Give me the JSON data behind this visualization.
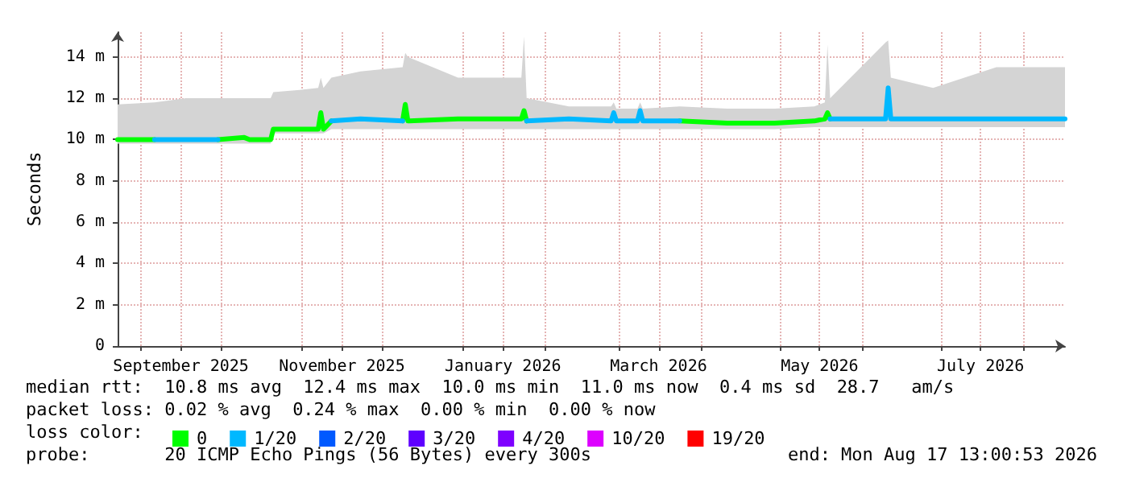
{
  "chart_data": {
    "type": "line",
    "ylabel": "Seconds",
    "legend_title": "loss color:",
    "legend": "bottom",
    "grid": true,
    "marker": "none",
    "line_style": "solid",
    "x": [
      "2025-08-23",
      "2025-09-06",
      "2025-09-18",
      "2025-09-30",
      "2025-10-10",
      "2025-10-12",
      "2025-10-20",
      "2025-10-21",
      "2025-10-31",
      "2025-11-07",
      "2025-11-08",
      "2025-11-09",
      "2025-11-12",
      "2025-11-23",
      "2025-12-09",
      "2025-12-10",
      "2025-12-11",
      "2025-12-30",
      "2026-01-23",
      "2026-01-24",
      "2026-01-25",
      "2026-02-10",
      "2026-02-26",
      "2026-02-27",
      "2026-02-28",
      "2026-03-08",
      "2026-03-09",
      "2026-03-10",
      "2026-03-24",
      "2026-04-11",
      "2026-04-29",
      "2026-05-14",
      "2026-05-18",
      "2026-05-19",
      "2026-05-20",
      "2026-06-10",
      "2026-06-11",
      "2026-06-12",
      "2026-06-28",
      "2026-07-22",
      "2026-08-17"
    ],
    "xlim": [
      "2025-08-23",
      "2026-08-17"
    ],
    "xticks": [
      {
        "value": "2025-09-01",
        "label": null
      },
      {
        "value": "2025-09-16",
        "label": "September 2025"
      },
      {
        "value": "2025-10-01",
        "label": null
      },
      {
        "value": "2025-11-01",
        "label": null
      },
      {
        "value": "2025-11-16",
        "label": "November 2025"
      },
      {
        "value": "2025-12-01",
        "label": null
      },
      {
        "value": "2026-01-01",
        "label": null
      },
      {
        "value": "2026-01-16",
        "label": "January 2026"
      },
      {
        "value": "2026-02-01",
        "label": null
      },
      {
        "value": "2026-03-01",
        "label": null
      },
      {
        "value": "2026-03-16",
        "label": "March 2026"
      },
      {
        "value": "2026-04-01",
        "label": null
      },
      {
        "value": "2026-05-01",
        "label": null
      },
      {
        "value": "2026-05-16",
        "label": "May 2026"
      },
      {
        "value": "2026-06-01",
        "label": null
      },
      {
        "value": "2026-07-01",
        "label": null
      },
      {
        "value": "2026-07-16",
        "label": "July 2026"
      },
      {
        "value": "2026-08-01",
        "label": null
      }
    ],
    "ylim": [
      0,
      15.2
    ],
    "yticks": [
      0,
      {
        "value": 2,
        "label": "2 m"
      },
      {
        "value": 4,
        "label": "4 m"
      },
      {
        "value": 6,
        "label": "6 m"
      },
      {
        "value": 8,
        "label": "8 m"
      },
      {
        "value": 10,
        "label": "10 m"
      },
      {
        "value": 12,
        "label": "12 m"
      },
      {
        "value": 14,
        "label": "14 m"
      }
    ],
    "series": [
      {
        "name": "0",
        "color": "#00ff00",
        "values": [
          10.0,
          10.0,
          null,
          10.0,
          10.1,
          10.0,
          10.0,
          10.5,
          10.5,
          10.5,
          11.3,
          10.5,
          10.9,
          null,
          10.9,
          11.7,
          10.9,
          11.0,
          11.0,
          11.4,
          10.9,
          null,
          null,
          null,
          null,
          null,
          null,
          null,
          10.9,
          10.8,
          10.8,
          10.9,
          11.0,
          11.3,
          11.0,
          null,
          null,
          null,
          null,
          null,
          null
        ],
        "lower": [
          9.8,
          9.8,
          9.8,
          9.8,
          9.8,
          9.8,
          9.8,
          10.3,
          10.3,
          10.3,
          10.3,
          10.3,
          10.5,
          10.5,
          10.5,
          10.5,
          10.5,
          10.5,
          10.5,
          10.5,
          10.5,
          10.5,
          10.5,
          10.5,
          10.5,
          10.5,
          10.5,
          10.5,
          10.5,
          10.5,
          10.5,
          10.6,
          10.6,
          10.6,
          10.6,
          10.6,
          10.6,
          10.6,
          10.6,
          10.6,
          10.6
        ],
        "upper": [
          11.7,
          11.8,
          12.0,
          12.0,
          12.0,
          12.0,
          12.0,
          12.3,
          12.4,
          12.5,
          13.0,
          12.5,
          13.0,
          13.3,
          13.5,
          14.2,
          14.0,
          13.0,
          13.0,
          15.0,
          12.0,
          11.6,
          11.6,
          11.8,
          11.5,
          11.5,
          11.8,
          11.5,
          11.6,
          11.5,
          11.5,
          11.6,
          11.8,
          14.6,
          12.0,
          14.7,
          14.8,
          13.0,
          12.5,
          13.5,
          13.5
        ]
      },
      {
        "name": "1/20",
        "color": "#00b8ff",
        "values": [
          null,
          10.0,
          10.0,
          10.0,
          null,
          null,
          null,
          null,
          null,
          null,
          null,
          null,
          10.9,
          11.0,
          10.9,
          null,
          null,
          null,
          null,
          null,
          10.9,
          11.0,
          10.9,
          11.3,
          10.9,
          10.9,
          11.4,
          10.9,
          10.9,
          null,
          null,
          null,
          null,
          null,
          11.0,
          11.0,
          12.5,
          11.0,
          11.0,
          11.0,
          11.0
        ]
      },
      {
        "name": "2/20",
        "color": "#0059ff",
        "values": [
          null,
          null,
          null,
          null,
          null,
          null,
          null,
          null,
          null,
          null,
          null,
          null,
          null,
          null,
          null,
          null,
          null,
          null,
          null,
          null,
          null,
          null,
          null,
          null,
          null,
          null,
          null,
          null,
          null,
          null,
          null,
          null,
          null,
          null,
          null,
          null,
          null,
          null,
          null,
          null,
          null
        ]
      },
      {
        "name": "3/20",
        "color": "#5e00ff",
        "values": [
          null,
          null,
          null,
          null,
          null,
          null,
          null,
          null,
          null,
          null,
          null,
          null,
          null,
          null,
          null,
          null,
          null,
          null,
          null,
          null,
          null,
          null,
          null,
          null,
          null,
          null,
          null,
          null,
          null,
          null,
          null,
          null,
          null,
          null,
          null,
          null,
          null,
          null,
          null,
          null,
          null
        ]
      },
      {
        "name": "4/20",
        "color": "#7e00ff",
        "values": [
          null,
          null,
          null,
          null,
          null,
          null,
          null,
          null,
          null,
          null,
          null,
          null,
          null,
          null,
          null,
          null,
          null,
          null,
          null,
          null,
          null,
          null,
          null,
          null,
          null,
          null,
          null,
          null,
          null,
          null,
          null,
          null,
          null,
          null,
          null,
          null,
          null,
          null,
          null,
          null,
          null
        ]
      },
      {
        "name": "10/20",
        "color": "#dd00ff",
        "values": [
          null,
          null,
          null,
          null,
          null,
          null,
          null,
          null,
          null,
          null,
          null,
          null,
          null,
          null,
          null,
          null,
          null,
          null,
          null,
          null,
          null,
          null,
          null,
          null,
          null,
          null,
          null,
          null,
          null,
          null,
          null,
          null,
          null,
          null,
          null,
          null,
          null,
          null,
          null,
          null,
          null
        ]
      },
      {
        "name": "19/20",
        "color": "#ff0000",
        "values": [
          null,
          null,
          null,
          null,
          null,
          null,
          null,
          null,
          null,
          null,
          null,
          null,
          null,
          null,
          null,
          null,
          null,
          null,
          null,
          null,
          null,
          null,
          null,
          null,
          null,
          null,
          null,
          null,
          null,
          null,
          null,
          null,
          null,
          null,
          null,
          null,
          null,
          null,
          null,
          null,
          null
        ]
      }
    ],
    "annotations": [
      "median rtt:  10.8 ms avg  12.4 ms max  10.0 ms min  11.0 ms now  0.4 ms sd  28.7   am/s",
      "packet loss: 0.02 % avg  0.24 % max  0.00 % min  0.00 % now",
      "probe:       20 ICMP Echo Pings (56 Bytes) every 300s",
      "end: Mon Aug 17 13:00:53 2026"
    ]
  }
}
